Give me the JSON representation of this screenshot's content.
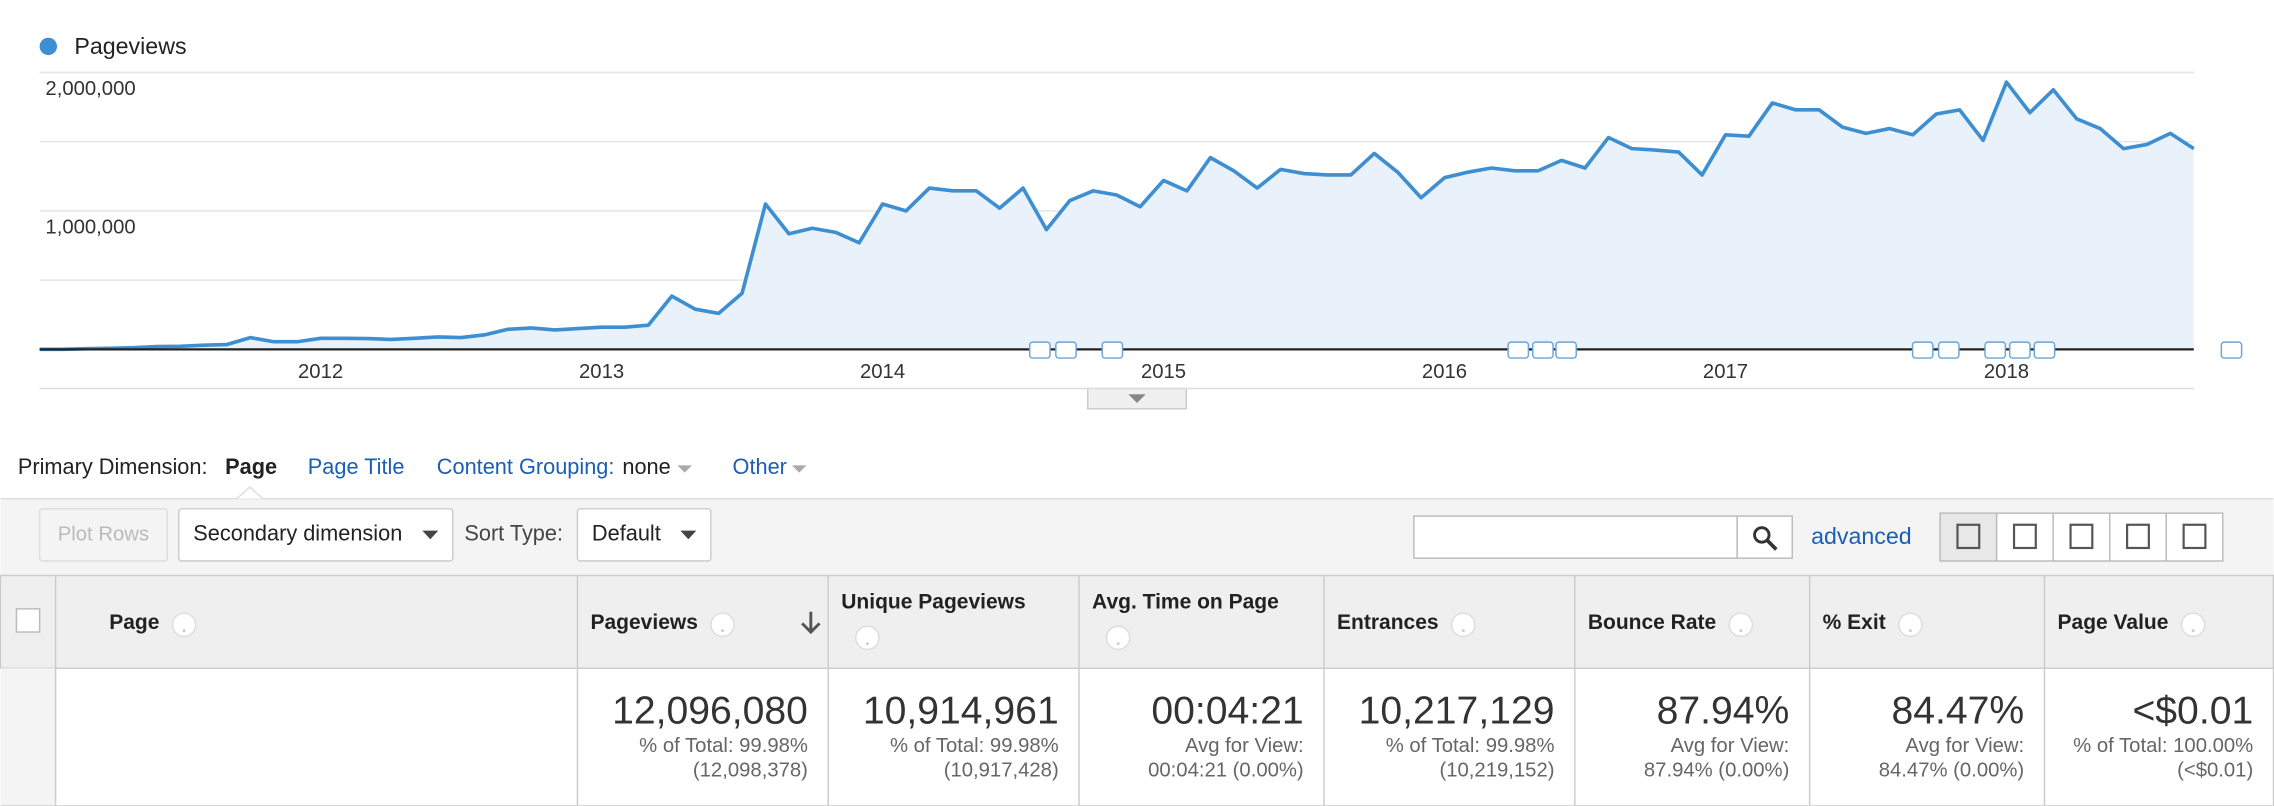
{
  "chart_data": {
    "type": "line",
    "categories": [
      null,
      null,
      null,
      null,
      null,
      null,
      null,
      null,
      null,
      null,
      null,
      null,
      "2012",
      null,
      null,
      null,
      null,
      null,
      null,
      null,
      null,
      null,
      null,
      null,
      "2013",
      null,
      null,
      null,
      null,
      null,
      null,
      null,
      null,
      null,
      null,
      null,
      "2014",
      null,
      null,
      null,
      null,
      null,
      null,
      null,
      null,
      null,
      null,
      null,
      "2015",
      null,
      null,
      null,
      null,
      null,
      null,
      null,
      null,
      null,
      null,
      null,
      "2016",
      null,
      null,
      null,
      null,
      null,
      null,
      null,
      null,
      null,
      null,
      null,
      "2017",
      null,
      null,
      null,
      null,
      null,
      null,
      null,
      null,
      null,
      null,
      null,
      "2018",
      null,
      null,
      null,
      null,
      null,
      null,
      null,
      null
    ],
    "series": [
      {
        "name": "Pageviews",
        "color": "#3d8fd1",
        "values": [
          0,
          0,
          5000,
          8000,
          12000,
          20000,
          22000,
          30000,
          35000,
          85000,
          55000,
          55000,
          80000,
          80000,
          78000,
          72000,
          80000,
          90000,
          85000,
          105000,
          145000,
          155000,
          140000,
          150000,
          160000,
          160000,
          175000,
          385000,
          290000,
          260000,
          405000,
          1050000,
          835000,
          875000,
          845000,
          770000,
          1050000,
          1000000,
          1165000,
          1145000,
          1145000,
          1020000,
          1165000,
          865000,
          1075000,
          1145000,
          1115000,
          1030000,
          1220000,
          1145000,
          1385000,
          1290000,
          1165000,
          1300000,
          1270000,
          1260000,
          1260000,
          1415000,
          1280000,
          1095000,
          1240000,
          1280000,
          1310000,
          1290000,
          1290000,
          1365000,
          1310000,
          1530000,
          1450000,
          1440000,
          1425000,
          1260000,
          1550000,
          1540000,
          1780000,
          1730000,
          1730000,
          1605000,
          1560000,
          1595000,
          1550000,
          1700000,
          1730000,
          1510000,
          1930000,
          1710000,
          1875000,
          1665000,
          1595000,
          1450000,
          1480000,
          1560000,
          1450000
        ]
      }
    ],
    "ylim": [
      0,
      2000000
    ],
    "yticks": [
      {
        "value": 1000000,
        "label": "1,000,000"
      },
      {
        "value": 2000000,
        "label": "2,000,000"
      }
    ],
    "ygrid": [
      500000,
      1000000,
      1500000,
      2000000
    ],
    "grid": true,
    "legend": "top-left"
  },
  "dimensions": {
    "label": "Primary Dimension:",
    "options": [
      "Page",
      "Page Title"
    ],
    "content_grouping": {
      "label": "Content Grouping:",
      "value": "none"
    },
    "other": "Other"
  },
  "toolbar": {
    "plot_rows": "Plot Rows",
    "secondary_dimension": "Secondary dimension",
    "sort_type_label": "Sort Type:",
    "sort_type": "Default",
    "advanced": "advanced"
  },
  "table": {
    "columns": [
      "Page",
      "Pageviews",
      "Unique Pageviews",
      "Avg. Time on Page",
      "Entrances",
      "Bounce Rate",
      "% Exit",
      "Page Value"
    ],
    "totals": [
      [
        "12,096,080",
        "% of Total: 99.98%",
        "(12,098,378)"
      ],
      [
        "10,914,961",
        "% of Total: 99.98%",
        "(10,917,428)"
      ],
      [
        "00:04:21",
        "Avg for View:",
        "00:04:21 (0.00%)"
      ],
      [
        "10,217,129",
        "% of Total: 99.98%",
        "(10,219,152)"
      ],
      [
        "87.94%",
        "Avg for View:",
        "87.94% (0.00%)"
      ],
      [
        "84.47%",
        "Avg for View:",
        "84.47% (0.00%)"
      ],
      [
        "<$0.01",
        "% of Total: 100.00%",
        "(<$0.01)"
      ]
    ]
  }
}
